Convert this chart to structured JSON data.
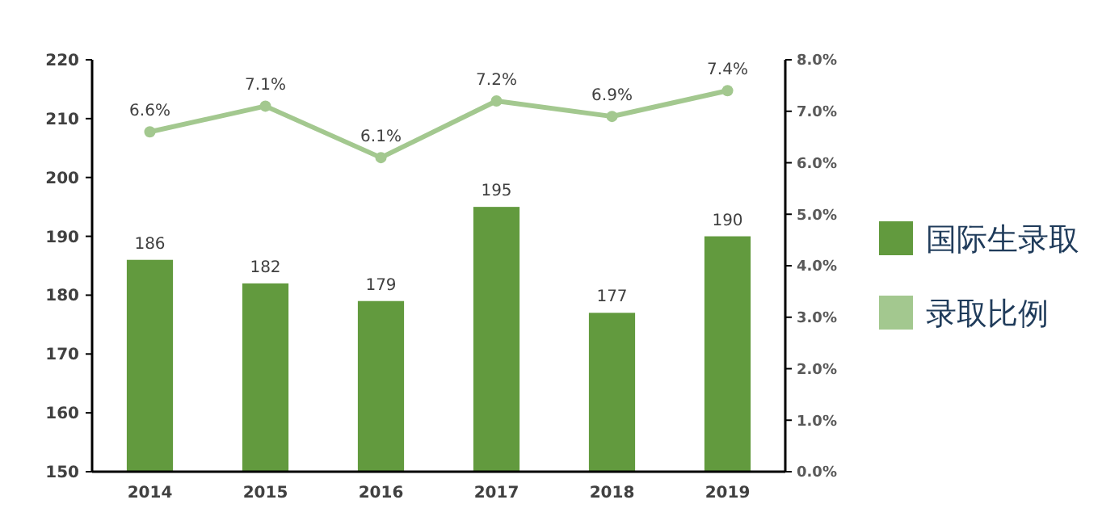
{
  "chart_data": {
    "type": "bar",
    "categories": [
      "2014",
      "2015",
      "2016",
      "2017",
      "2018",
      "2019"
    ],
    "series": [
      {
        "name": "国际生录取",
        "color": "#629a3e",
        "values": [
          186,
          182,
          179,
          195,
          177,
          190
        ],
        "value_labels": [
          "186",
          "182",
          "179",
          "195",
          "177",
          "190"
        ]
      },
      {
        "name": "录取比例",
        "type": "line",
        "axis": "y2",
        "color": "#a3c88f",
        "marker": "circle",
        "values": [
          6.6,
          7.1,
          6.1,
          7.2,
          6.9,
          7.4
        ],
        "value_labels": [
          "6.6%",
          "7.1%",
          "6.1%",
          "7.2%",
          "6.9%",
          "7.4%"
        ]
      }
    ],
    "ylim": [
      150,
      220
    ],
    "yticks": [
      150,
      160,
      170,
      180,
      190,
      200,
      210,
      220
    ],
    "y2lim": [
      0,
      8
    ],
    "y2ticks": [
      {
        "value": 0,
        "label": "0.0%"
      },
      {
        "value": 1,
        "label": "1.0%"
      },
      {
        "value": 2,
        "label": "2.0%"
      },
      {
        "value": 3,
        "label": "3.0%"
      },
      {
        "value": 4,
        "label": "4.0%"
      },
      {
        "value": 5,
        "label": "5.0%"
      },
      {
        "value": 6,
        "label": "6.0%"
      },
      {
        "value": 7,
        "label": "7.0%"
      },
      {
        "value": 8,
        "label": "8.0%"
      }
    ],
    "legend": "right"
  }
}
